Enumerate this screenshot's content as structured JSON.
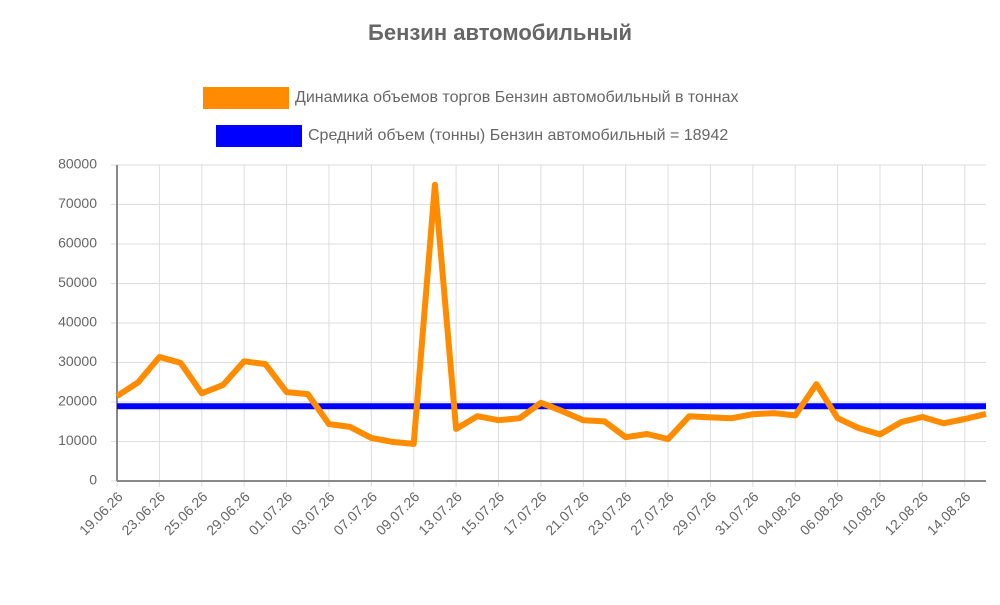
{
  "chart_data": {
    "type": "line",
    "title": "Бензин автомобильный",
    "categories": [
      "19.06.26",
      null,
      "23.06.26",
      null,
      "25.06.26",
      null,
      "29.06.26",
      null,
      "01.07.26",
      null,
      "03.07.26",
      null,
      "07.07.26",
      null,
      "09.07.26",
      null,
      "13.07.26",
      null,
      "15.07.26",
      null,
      "17.07.26",
      null,
      "21.07.26",
      null,
      "23.07.26",
      null,
      "27.07.26",
      null,
      "29.07.26",
      null,
      "31.07.26",
      null,
      "04.08.26",
      null,
      "06.08.26",
      null,
      "10.08.26",
      null,
      "12.08.26",
      null,
      "14.08.26",
      null
    ],
    "series": [
      {
        "name": "Динамика объемов торгов Бензин автомобильный в тоннах",
        "color": "#ff8c00",
        "values": [
          21500,
          25000,
          31400,
          29900,
          22200,
          24300,
          30300,
          29600,
          22500,
          22000,
          14400,
          13700,
          10900,
          9900,
          9400,
          75000,
          13200,
          16400,
          15400,
          15900,
          19800,
          17700,
          15400,
          15100,
          11100,
          11900,
          10600,
          16400,
          16100,
          15900,
          16900,
          17200,
          16600,
          24500,
          15900,
          13400,
          11800,
          14900,
          16200,
          14600,
          15700,
          17000
        ]
      },
      {
        "name": "Средний объем (тонны) Бензин автомобильный = 18942",
        "color": "#0000ff",
        "values": [
          18942,
          18942,
          18942,
          18942,
          18942,
          18942,
          18942,
          18942,
          18942,
          18942,
          18942,
          18942,
          18942,
          18942,
          18942,
          18942,
          18942,
          18942,
          18942,
          18942,
          18942,
          18942,
          18942,
          18942,
          18942,
          18942,
          18942,
          18942,
          18942,
          18942,
          18942,
          18942,
          18942,
          18942,
          18942,
          18942,
          18942,
          18942,
          18942,
          18942,
          18942,
          18942
        ]
      }
    ],
    "ylim": [
      0,
      80000
    ],
    "yticks": [
      0,
      10000,
      20000,
      30000,
      40000,
      50000,
      60000,
      70000,
      80000
    ],
    "grid": true
  }
}
